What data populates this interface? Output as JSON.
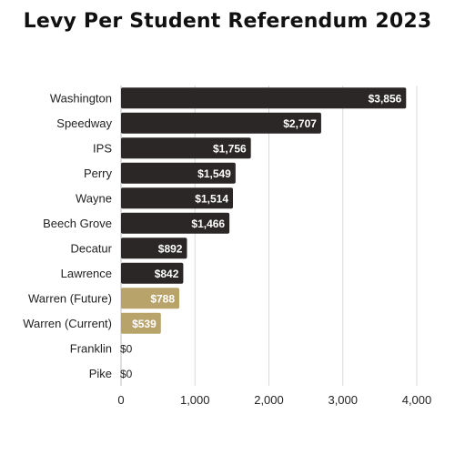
{
  "chart_data": {
    "type": "bar",
    "orientation": "horizontal",
    "title": "Levy Per Student Referendum 2023",
    "xlabel": "",
    "ylabel": "",
    "categories": [
      "Washington",
      "Speedway",
      "IPS",
      "Perry ",
      "Wayne",
      "Beech Grove",
      "Decatur",
      "Lawrence",
      "Warren (Future)",
      "Warren (Current) ",
      "Franklin",
      "Pike"
    ],
    "values": [
      3856,
      2707,
      1756,
      1549,
      1514,
      1466,
      892,
      842,
      788,
      539,
      0,
      0
    ],
    "data_labels": [
      "$3,856",
      "$2,707",
      "$1,756",
      "$1,549",
      "$1,514",
      "$1,466",
      "$892",
      "$842",
      "$788",
      "$539",
      "$0",
      "$0"
    ],
    "xlim": [
      0,
      4000
    ],
    "x_ticks": [
      0,
      1000,
      2000,
      3000,
      4000
    ],
    "x_tick_labels": [
      "0",
      "1,000",
      "2,000",
      "3,000",
      "4,000"
    ],
    "grid": "vertical",
    "legend": "none",
    "colors": {
      "default_bar": "#2b2726",
      "highlight_bar": "#b8a46a",
      "gridline": "#d9d9d9"
    },
    "highlighted_categories": [
      "Warren (Future)",
      "Warren (Current) "
    ]
  }
}
